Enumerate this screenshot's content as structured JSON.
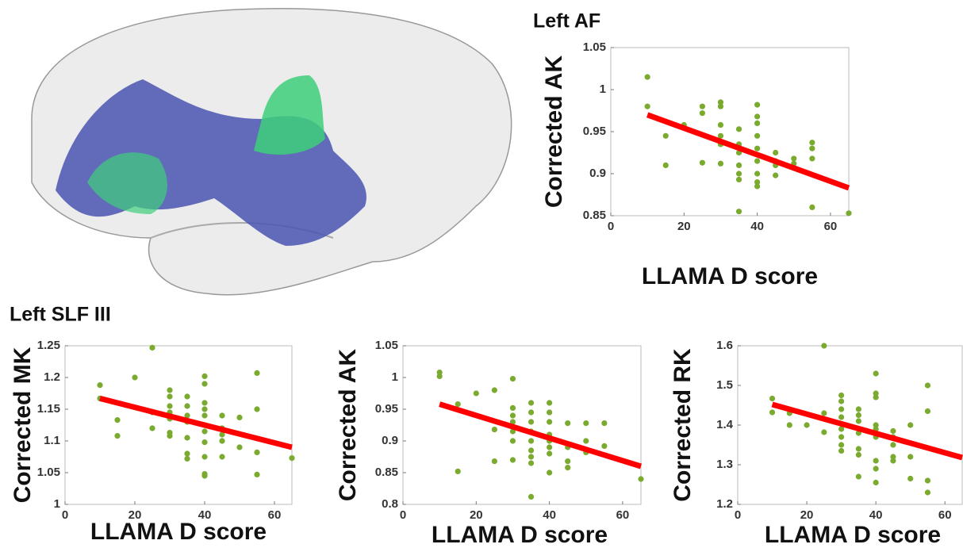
{
  "chart_data": [
    {
      "type": "scatter",
      "title": "Left AF",
      "xlabel": "LLAMA D score",
      "ylabel": "Corrected AK",
      "color": "#7aab2e",
      "xlim": [
        0,
        65
      ],
      "xticks": [
        0,
        20,
        40,
        60
      ],
      "ylim": [
        0.85,
        1.05
      ],
      "yticks": [
        0.85,
        0.9,
        0.95,
        1,
        1.05
      ],
      "x": [
        10,
        10,
        15,
        15,
        20,
        25,
        25,
        25,
        30,
        30,
        30,
        30,
        30,
        30,
        35,
        35,
        35,
        35,
        35,
        35,
        35,
        40,
        40,
        40,
        40,
        40,
        40,
        40,
        40,
        40,
        45,
        45,
        45,
        45,
        50,
        50,
        55,
        55,
        55,
        55,
        65
      ],
      "values": [
        1.015,
        0.98,
        0.945,
        0.91,
        0.958,
        0.98,
        0.972,
        0.913,
        0.985,
        0.98,
        0.958,
        0.945,
        0.935,
        0.912,
        0.953,
        0.935,
        0.925,
        0.91,
        0.9,
        0.893,
        0.855,
        0.982,
        0.968,
        0.96,
        0.945,
        0.93,
        0.915,
        0.9,
        0.89,
        0.885,
        0.925,
        0.915,
        0.91,
        0.898,
        0.918,
        0.912,
        0.937,
        0.93,
        0.918,
        0.86,
        0.853
      ],
      "trend": {
        "color": "#ff0000",
        "x": [
          10,
          65
        ],
        "values": [
          0.97,
          0.883
        ]
      }
    },
    {
      "type": "scatter",
      "title": "Left SLF III",
      "xlabel": "LLAMA D score",
      "ylabel": "Corrected MK",
      "color": "#7aab2e",
      "xlim": [
        0,
        65
      ],
      "xticks": [
        0,
        20,
        40,
        60
      ],
      "ylim": [
        1,
        1.25
      ],
      "yticks": [
        1,
        1.05,
        1.1,
        1.15,
        1.2,
        1.25
      ],
      "x": [
        10,
        10,
        15,
        15,
        20,
        25,
        25,
        25,
        30,
        30,
        30,
        30,
        30,
        30,
        30,
        35,
        35,
        35,
        35,
        35,
        35,
        35,
        40,
        40,
        40,
        40,
        40,
        40,
        40,
        40,
        40,
        40,
        40,
        45,
        45,
        45,
        45,
        45,
        50,
        50,
        55,
        55,
        55,
        55,
        65
      ],
      "values": [
        1.188,
        1.167,
        1.133,
        1.108,
        1.2,
        1.247,
        1.145,
        1.12,
        1.18,
        1.17,
        1.155,
        1.145,
        1.135,
        1.113,
        1.108,
        1.17,
        1.155,
        1.14,
        1.13,
        1.105,
        1.08,
        1.072,
        1.202,
        1.19,
        1.16,
        1.15,
        1.14,
        1.125,
        1.115,
        1.098,
        1.075,
        1.048,
        1.045,
        1.14,
        1.12,
        1.11,
        1.1,
        1.075,
        1.137,
        1.09,
        1.207,
        1.15,
        1.082,
        1.047,
        1.073
      ],
      "trend": {
        "color": "#ff0000",
        "x": [
          10,
          65
        ],
        "values": [
          1.167,
          1.09
        ]
      }
    },
    {
      "type": "scatter",
      "xlabel": "LLAMA D score",
      "ylabel": "Corrected AK",
      "color": "#7aab2e",
      "xlim": [
        0,
        65
      ],
      "xticks": [
        0,
        20,
        40,
        60
      ],
      "ylim": [
        0.8,
        1.05
      ],
      "yticks": [
        0.8,
        0.85,
        0.9,
        0.95,
        1,
        1.05
      ],
      "x": [
        10,
        10,
        15,
        15,
        20,
        25,
        25,
        25,
        30,
        30,
        30,
        30,
        30,
        30,
        30,
        35,
        35,
        35,
        35,
        35,
        35,
        35,
        35,
        35,
        40,
        40,
        40,
        40,
        40,
        40,
        40,
        40,
        45,
        45,
        45,
        45,
        50,
        50,
        50,
        55,
        55,
        65
      ],
      "values": [
        1.008,
        1.002,
        0.958,
        0.852,
        0.975,
        0.98,
        0.918,
        0.868,
        0.998,
        0.952,
        0.94,
        0.93,
        0.915,
        0.9,
        0.87,
        0.96,
        0.945,
        0.93,
        0.915,
        0.9,
        0.885,
        0.875,
        0.865,
        0.812,
        0.96,
        0.945,
        0.93,
        0.91,
        0.9,
        0.89,
        0.88,
        0.85,
        0.928,
        0.89,
        0.868,
        0.858,
        0.928,
        0.9,
        0.882,
        0.928,
        0.892,
        0.84
      ],
      "trend": {
        "color": "#ff0000",
        "x": [
          10,
          65
        ],
        "values": [
          0.958,
          0.86
        ]
      }
    },
    {
      "type": "scatter",
      "xlabel": "LLAMA D score",
      "ylabel": "Corrected RK",
      "color": "#7aab2e",
      "xlim": [
        0,
        65
      ],
      "xticks": [
        0,
        20,
        40,
        60
      ],
      "ylim": [
        1.2,
        1.6
      ],
      "yticks": [
        1.2,
        1.3,
        1.4,
        1.5,
        1.6
      ],
      "x": [
        10,
        10,
        15,
        15,
        20,
        25,
        25,
        25,
        30,
        30,
        30,
        30,
        30,
        30,
        30,
        30,
        35,
        35,
        35,
        35,
        35,
        35,
        35,
        40,
        40,
        40,
        40,
        40,
        40,
        40,
        40,
        40,
        45,
        45,
        45,
        45,
        45,
        50,
        50,
        50,
        55,
        55,
        55,
        55
      ],
      "values": [
        1.467,
        1.432,
        1.43,
        1.4,
        1.4,
        1.6,
        1.43,
        1.382,
        1.475,
        1.46,
        1.44,
        1.42,
        1.39,
        1.37,
        1.35,
        1.335,
        1.44,
        1.425,
        1.41,
        1.38,
        1.34,
        1.325,
        1.27,
        1.53,
        1.48,
        1.47,
        1.4,
        1.39,
        1.37,
        1.31,
        1.29,
        1.255,
        1.385,
        1.37,
        1.35,
        1.32,
        1.31,
        1.4,
        1.32,
        1.265,
        1.5,
        1.435,
        1.26,
        1.23
      ],
      "trend": {
        "color": "#ff0000",
        "x": [
          10,
          65
        ],
        "values": [
          1.452,
          1.318
        ]
      }
    }
  ]
}
